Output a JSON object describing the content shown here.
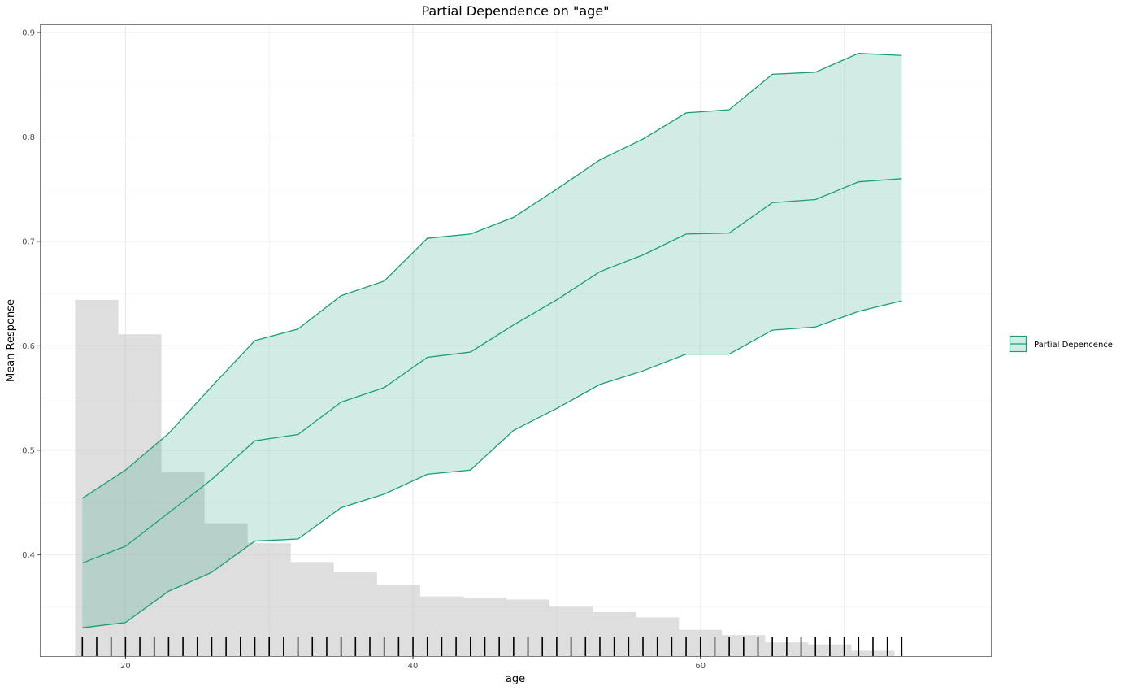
{
  "chart_data": {
    "type": "line",
    "title": "Partial Dependence on \"age\"",
    "xlabel": "age",
    "ylabel": "Mean Response",
    "xlim": [
      14.1,
      80.2
    ],
    "ylim": [
      0.3029,
      0.907
    ],
    "x_ticks": [
      20,
      40,
      60
    ],
    "y_ticks": [
      0.4,
      0.5,
      0.6,
      0.7,
      0.8,
      0.9
    ],
    "x_tick_labels": [
      "20",
      "40",
      "60"
    ],
    "y_tick_labels": [
      "0.4",
      "0.5",
      "0.6",
      "0.7",
      "0.8",
      "0.9"
    ],
    "grid": true,
    "legend": {
      "position": "right",
      "entries": [
        "Partial Depencence"
      ]
    },
    "colors": {
      "line": "#1b9e77",
      "band_fill": "#1b9e77",
      "histogram": "#bebebe",
      "rug": "#000000",
      "grid": "#ebebeb",
      "panel_border": "#7f7f7f"
    },
    "x": [
      17,
      20,
      23,
      26,
      29,
      32,
      35,
      38,
      41,
      44,
      47,
      50,
      53,
      56,
      59,
      62,
      65,
      68,
      71,
      74
    ],
    "series": [
      {
        "values": [
          0.392,
          0.408,
          0.44,
          0.472,
          0.509,
          0.515,
          0.546,
          0.56,
          0.589,
          0.594,
          0.62,
          0.644,
          0.671,
          0.687,
          0.707,
          0.708,
          0.737,
          0.74,
          0.757,
          0.76
        ]
      },
      {
        "values": [
          0.454,
          0.481,
          0.516,
          0.561,
          0.605,
          0.616,
          0.648,
          0.662,
          0.703,
          0.707,
          0.723,
          0.75,
          0.778,
          0.798,
          0.823,
          0.826,
          0.86,
          0.862,
          0.88,
          0.878
        ]
      },
      {
        "values": [
          0.33,
          0.335,
          0.365,
          0.383,
          0.413,
          0.415,
          0.445,
          0.458,
          0.477,
          0.481,
          0.519,
          0.54,
          0.563,
          0.576,
          0.592,
          0.592,
          0.615,
          0.618,
          0.633,
          0.643
        ]
      }
    ],
    "histogram": {
      "bin_edges": [
        16.5,
        19.5,
        22.5,
        25.5,
        28.5,
        31.5,
        34.5,
        37.5,
        40.5,
        43.5,
        46.5,
        49.5,
        52.5,
        55.5,
        58.5,
        61.5,
        64.5,
        67.5,
        70.5,
        73.5,
        76.5
      ],
      "heights": [
        0.644,
        0.611,
        0.479,
        0.43,
        0.411,
        0.393,
        0.383,
        0.371,
        0.36,
        0.359,
        0.357,
        0.35,
        0.345,
        0.34,
        0.328,
        0.323,
        0.316,
        0.314,
        0.308,
        0.302
      ]
    },
    "rug": {
      "from": 17,
      "to": 74,
      "step": 1,
      "top": 0.321
    }
  }
}
